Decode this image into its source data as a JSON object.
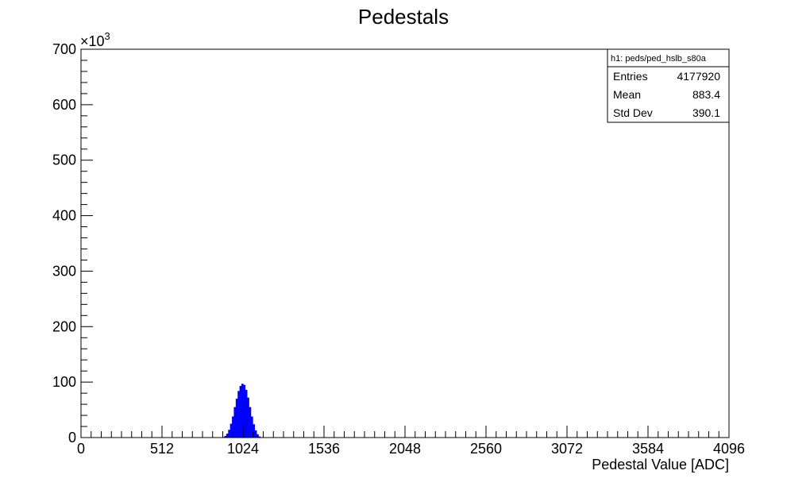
{
  "chart_data": {
    "type": "bar",
    "title": "Pedestals",
    "xlabel": "Pedestal Value [ADC]",
    "ylabel": "",
    "xlim": [
      0,
      4096
    ],
    "ylim": [
      0,
      700000
    ],
    "y_exponent_label": "×10",
    "y_exponent_power": "3",
    "x_ticks": [
      0,
      512,
      1024,
      1536,
      2048,
      2560,
      3072,
      3584,
      4096
    ],
    "x_tick_labels": [
      "0",
      "512",
      "1024",
      "1536",
      "2048",
      "2560",
      "3072",
      "3584",
      "4096"
    ],
    "y_ticks": [
      0,
      100000,
      200000,
      300000,
      400000,
      500000,
      600000,
      700000
    ],
    "y_tick_labels": [
      "0",
      "100",
      "200",
      "300",
      "400",
      "500",
      "600",
      "700"
    ],
    "fill_color": "#0000ff",
    "series": [
      {
        "x": [
          900,
          912,
          924,
          936,
          948,
          960,
          972,
          984,
          996,
          1008,
          1020,
          1032,
          1044,
          1056,
          1068,
          1080,
          1092,
          1104,
          1116,
          1128
        ],
        "values": [
          1000,
          3000,
          7000,
          14000,
          25000,
          38000,
          55000,
          70000,
          84000,
          93000,
          97000,
          95000,
          86000,
          72000,
          55000,
          38000,
          24000,
          13000,
          6000,
          2000
        ]
      }
    ],
    "stats_box": {
      "name": "h1: peds/ped_hslb_s80a",
      "rows": [
        {
          "label": "Entries",
          "value": "4177920"
        },
        {
          "label": "Mean",
          "value": "883.4"
        },
        {
          "label": "Std Dev",
          "value": "390.1"
        }
      ]
    },
    "grid": false,
    "legend": "top-right"
  }
}
